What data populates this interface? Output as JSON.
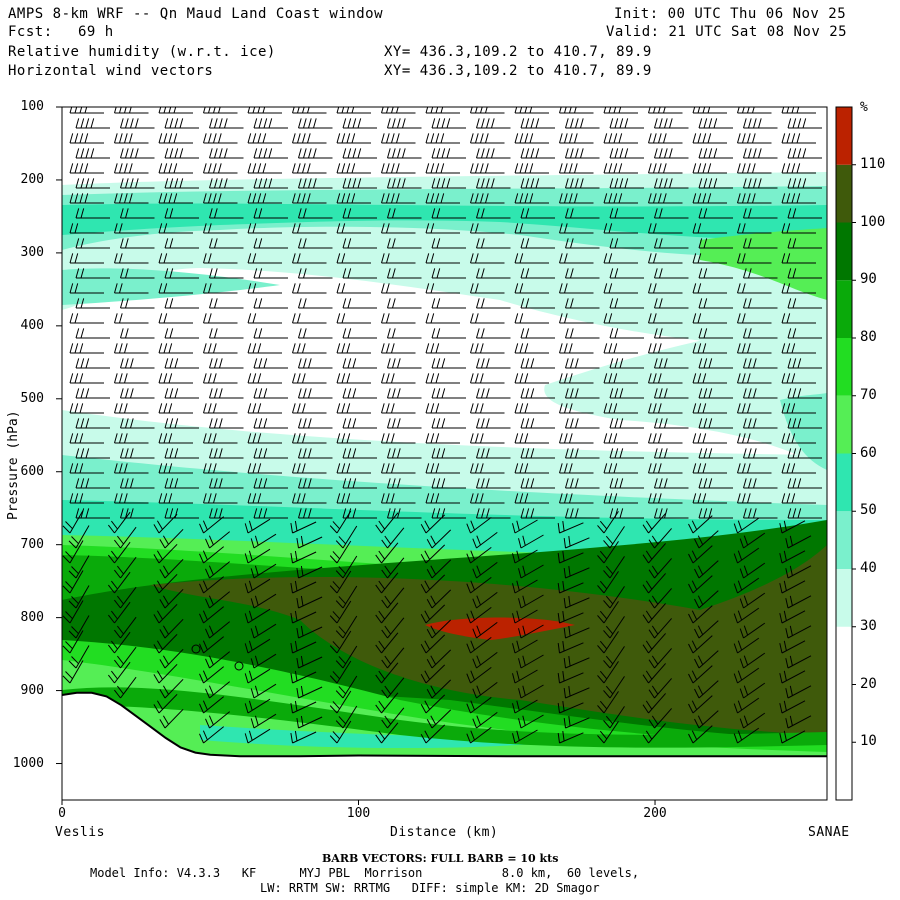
{
  "header": {
    "title": "AMPS 8-km WRF -- Qn Maud Land Coast window",
    "fcst_label": "Fcst:",
    "fcst_value": "69 h",
    "field1": "Relative humidity (w.r.t. ice)",
    "field2": "Horizontal wind vectors",
    "xy1": "XY= 436.3,109.2 to 410.7, 89.9",
    "xy2": "XY= 436.3,109.2 to 410.7, 89.9",
    "init": "Init: 00 UTC Thu 06 Nov 25",
    "valid": "Valid: 21 UTC Sat 08 Nov 25"
  },
  "chart_data": {
    "type": "heatmap",
    "title": "Relative humidity (w.r.t. ice)",
    "xlabel": "Distance (km)",
    "ylabel": "Pressure (hPa)",
    "xlim": [
      0,
      258
    ],
    "ylim": [
      1050,
      100
    ],
    "x_ticks": [
      "0",
      "100",
      "200"
    ],
    "y_ticks": [
      "100",
      "200",
      "300",
      "400",
      "500",
      "600",
      "700",
      "800",
      "900",
      "1000"
    ],
    "left_label": "Veslis",
    "right_label": "SANAE",
    "colorbar": {
      "unit": "%",
      "labels": [
        "10",
        "20",
        "30",
        "40",
        "50",
        "60",
        "70",
        "80",
        "90",
        "100",
        "110"
      ],
      "colors": [
        "#ffffff",
        "#ffffff",
        "#ffffff",
        "#c8fbea",
        "#7af0cc",
        "#2fe6b0",
        "#55ee55",
        "#22dd22",
        "#0aaa0a",
        "#007700",
        "#3f5a0b",
        "#bb2200"
      ]
    },
    "rh_levels": [
      {
        "name": "30-40",
        "color": "#c8fbea"
      },
      {
        "name": "40-50",
        "color": "#7af0cc"
      },
      {
        "name": "50-60",
        "color": "#2fe6b0"
      },
      {
        "name": "60-70",
        "color": "#55ee55"
      },
      {
        "name": "70-80",
        "color": "#22dd22"
      },
      {
        "name": "80-90",
        "color": "#0aaa0a"
      },
      {
        "name": "90-100",
        "color": "#007700"
      },
      {
        "name": "100-110",
        "color": "#3f5a0b"
      },
      {
        "name": ">110",
        "color": "#bb2200"
      }
    ],
    "terrain_profile": [
      [
        0,
        906
      ],
      [
        5,
        903
      ],
      [
        10,
        903
      ],
      [
        15,
        908
      ],
      [
        20,
        920
      ],
      [
        25,
        935
      ],
      [
        30,
        950
      ],
      [
        35,
        965
      ],
      [
        40,
        978
      ],
      [
        45,
        985
      ],
      [
        50,
        988
      ],
      [
        60,
        990
      ],
      [
        80,
        990
      ],
      [
        100,
        989
      ],
      [
        150,
        990
      ],
      [
        200,
        990
      ],
      [
        258,
        990
      ]
    ],
    "grid": false,
    "legend": "right colorbar"
  },
  "footer": {
    "barb_note": "BARB VECTORS: FULL BARB = 10 kts",
    "model_info": "Model Info: V4.3.3   KF      MYJ PBL  Morrison           8.0 km,  60 levels,",
    "model_info2": "LW: RRTM SW: RRTMG   DIFF: simple KM: 2D Smagor"
  }
}
